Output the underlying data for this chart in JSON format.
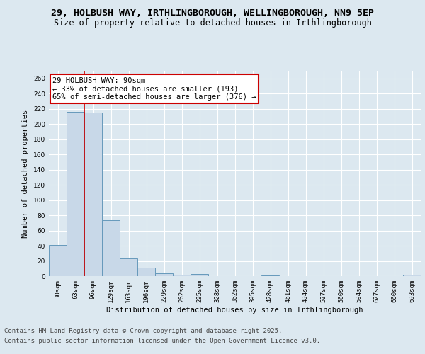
{
  "title_line1": "29, HOLBUSH WAY, IRTHLINGBOROUGH, WELLINGBOROUGH, NN9 5EP",
  "title_line2": "Size of property relative to detached houses in Irthlingborough",
  "xlabel": "Distribution of detached houses by size in Irthlingborough",
  "ylabel": "Number of detached properties",
  "categories": [
    "30sqm",
    "63sqm",
    "96sqm",
    "129sqm",
    "163sqm",
    "196sqm",
    "229sqm",
    "262sqm",
    "295sqm",
    "328sqm",
    "362sqm",
    "395sqm",
    "428sqm",
    "461sqm",
    "494sqm",
    "527sqm",
    "560sqm",
    "594sqm",
    "627sqm",
    "660sqm",
    "693sqm"
  ],
  "values": [
    41,
    216,
    215,
    74,
    23,
    11,
    4,
    2,
    3,
    0,
    0,
    0,
    1,
    0,
    0,
    0,
    0,
    0,
    0,
    0,
    2
  ],
  "bar_color": "#c8d8e8",
  "bar_edge_color": "#6699bb",
  "vline_x": 1.5,
  "vline_color": "#cc0000",
  "annotation_text": "29 HOLBUSH WAY: 90sqm\n← 33% of detached houses are smaller (193)\n65% of semi-detached houses are larger (376) →",
  "annotation_box_color": "#cc0000",
  "ylim": [
    0,
    270
  ],
  "yticks": [
    0,
    20,
    40,
    60,
    80,
    100,
    120,
    140,
    160,
    180,
    200,
    220,
    240,
    260
  ],
  "background_color": "#dce8f0",
  "plot_bg_color": "#dce8f0",
  "footer_line1": "Contains HM Land Registry data © Crown copyright and database right 2025.",
  "footer_line2": "Contains public sector information licensed under the Open Government Licence v3.0.",
  "title_fontsize": 9.5,
  "subtitle_fontsize": 8.5,
  "axis_label_fontsize": 7.5,
  "tick_fontsize": 6.5,
  "annotation_fontsize": 7.5,
  "footer_fontsize": 6.5
}
